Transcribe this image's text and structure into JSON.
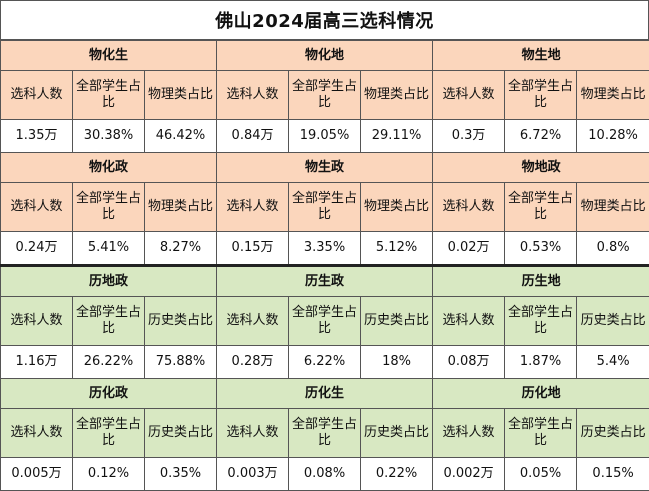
{
  "title": "佛山2024届高三选科情况",
  "sections": [
    {
      "theme": "physics",
      "color": "#fbd6bc",
      "groups": [
        {
          "name": "物化生",
          "headers": [
            "选科人数",
            "全部学生占比",
            "物理类占比"
          ],
          "values": [
            "1.35万",
            "30.38%",
            "46.42%"
          ]
        },
        {
          "name": "物化地",
          "headers": [
            "选科人数",
            "全部学生占比",
            "物理类占比"
          ],
          "values": [
            "0.84万",
            "19.05%",
            "29.11%"
          ]
        },
        {
          "name": "物生地",
          "headers": [
            "选科人数",
            "全部学生占比",
            "物理类占比"
          ],
          "values": [
            "0.3万",
            "6.72%",
            "10.28%"
          ]
        }
      ]
    },
    {
      "theme": "physics",
      "color": "#fbd6bc",
      "groups": [
        {
          "name": "物化政",
          "headers": [
            "选科人数",
            "全部学生占比",
            "物理类占比"
          ],
          "values": [
            "0.24万",
            "5.41%",
            "8.27%"
          ]
        },
        {
          "name": "物生政",
          "headers": [
            "选科人数",
            "全部学生占比",
            "物理类占比"
          ],
          "values": [
            "0.15万",
            "3.35%",
            "5.12%"
          ]
        },
        {
          "name": "物地政",
          "headers": [
            "选科人数",
            "全部学生占比",
            "物理类占比"
          ],
          "values": [
            "0.02万",
            "0.53%",
            "0.8%"
          ]
        }
      ]
    },
    {
      "theme": "history",
      "color": "#d8e8c2",
      "groups": [
        {
          "name": "历地政",
          "headers": [
            "选科人数",
            "全部学生占比",
            "历史类占比"
          ],
          "values": [
            "1.16万",
            "26.22%",
            "75.88%"
          ]
        },
        {
          "name": "历生政",
          "headers": [
            "选科人数",
            "全部学生占比",
            "历史类占比"
          ],
          "values": [
            "0.28万",
            "6.22%",
            "18%"
          ]
        },
        {
          "name": "历生地",
          "headers": [
            "选科人数",
            "全部学生占比",
            "历史类占比"
          ],
          "values": [
            "0.08万",
            "1.87%",
            "5.4%"
          ]
        }
      ]
    },
    {
      "theme": "history",
      "color": "#d8e8c2",
      "groups": [
        {
          "name": "历化政",
          "headers": [
            "选科人数",
            "全部学生占比",
            "历史类占比"
          ],
          "values": [
            "0.005万",
            "0.12%",
            "0.35%"
          ]
        },
        {
          "name": "历化生",
          "headers": [
            "选科人数",
            "全部学生占比",
            "历史类占比"
          ],
          "values": [
            "0.003万",
            "0.08%",
            "0.22%"
          ]
        },
        {
          "name": "历化地",
          "headers": [
            "选科人数",
            "全部学生占比",
            "历史类占比"
          ],
          "values": [
            "0.002万",
            "0.05%",
            "0.15%"
          ]
        }
      ]
    }
  ]
}
